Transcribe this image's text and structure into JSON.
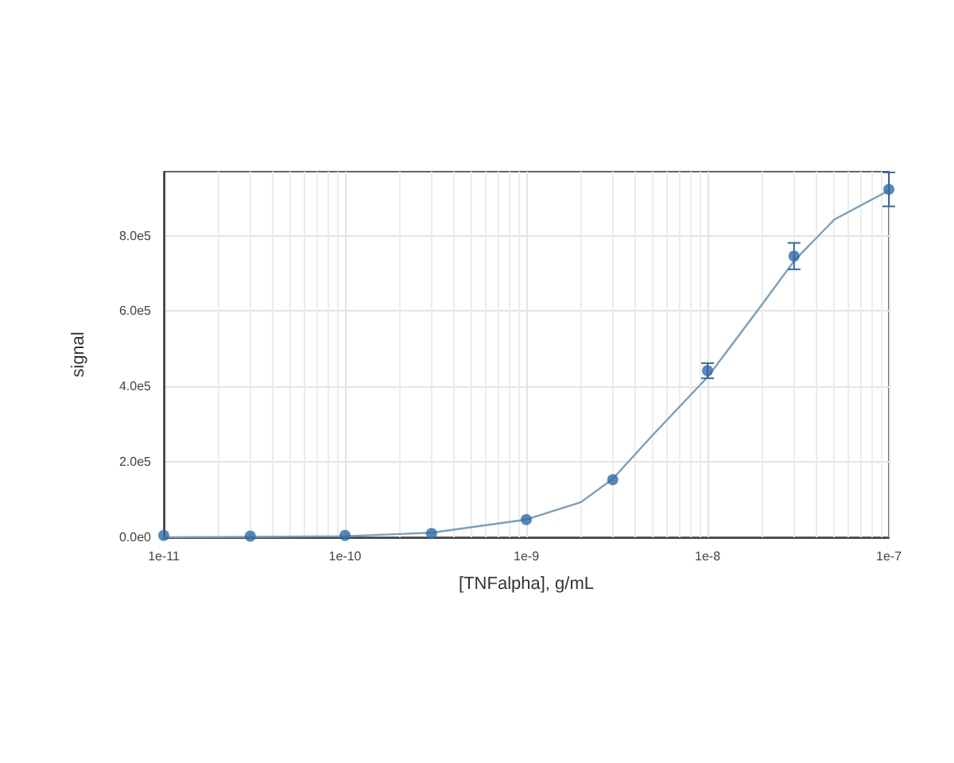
{
  "chart_data": {
    "type": "scatter",
    "xlabel": "[TNFalpha], g/mL",
    "ylabel": "signal",
    "log": "x",
    "grid": true,
    "marker": "circle",
    "xlim": [
      1e-11,
      1e-07
    ],
    "ylim": [
      0,
      970000
    ],
    "xticks": [
      {
        "value": 1e-11,
        "label": "1e-11"
      },
      {
        "value": 1e-10,
        "label": "1e-10"
      },
      {
        "value": 1e-09,
        "label": "1e-9"
      },
      {
        "value": 1e-08,
        "label": "1e-8"
      },
      {
        "value": 1e-07,
        "label": "1e-7"
      }
    ],
    "yticks": [
      {
        "value": 0,
        "label": "0.0e0"
      },
      {
        "value": 200000,
        "label": "2.0e5"
      },
      {
        "value": 400000,
        "label": "4.0e5"
      },
      {
        "value": 600000,
        "label": "6.0e5"
      },
      {
        "value": 800000,
        "label": "8.0e5"
      }
    ],
    "series": [
      {
        "type": "line",
        "color": "#7a9fba",
        "marker": "none",
        "x": [
          1e-11,
          3e-11,
          1e-10,
          3e-10,
          1e-09,
          2e-09,
          3e-09,
          5e-09,
          1e-08,
          2e-08,
          3e-08,
          5e-08,
          1e-07
        ],
        "values": [
          0,
          1000,
          3000,
          12000,
          47000,
          93000,
          155000,
          272000,
          425000,
          618000,
          733000,
          843000,
          920000
        ]
      },
      {
        "color": "#2e6aa8",
        "x": [
          1e-11,
          3e-11,
          1e-10,
          3e-10,
          1e-09,
          3e-09,
          1e-08,
          3e-08,
          1e-07
        ],
        "values": [
          5000,
          3000,
          5000,
          10000,
          47000,
          153000,
          442000,
          746000,
          923000
        ],
        "errors": [
          null,
          null,
          null,
          null,
          null,
          null,
          20000,
          35000,
          45000
        ]
      }
    ]
  }
}
